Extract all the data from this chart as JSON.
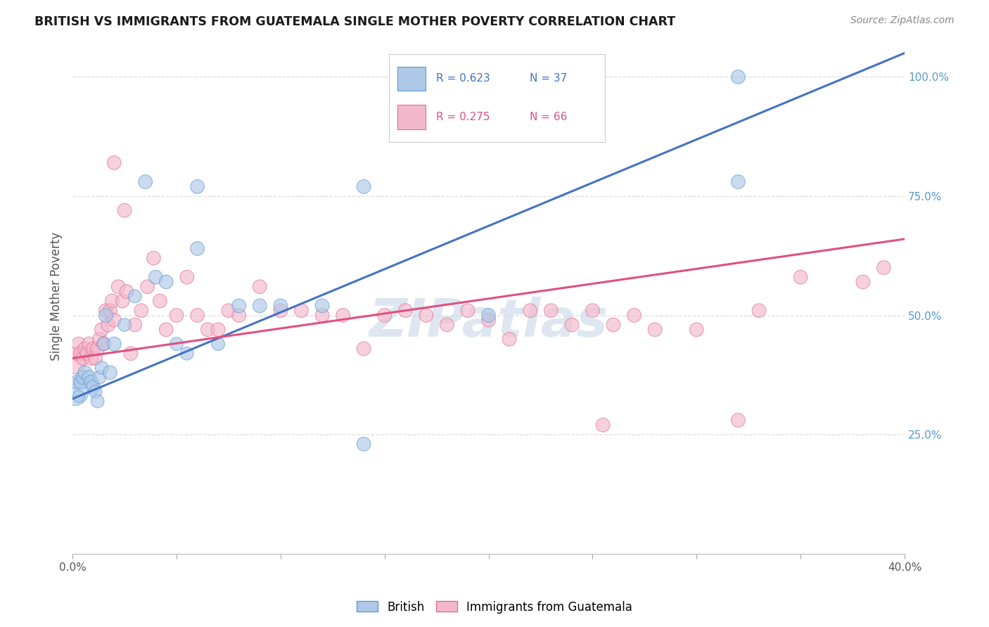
{
  "title": "BRITISH VS IMMIGRANTS FROM GUATEMALA SINGLE MOTHER POVERTY CORRELATION CHART",
  "source": "Source: ZipAtlas.com",
  "ylabel": "Single Mother Poverty",
  "legend_label1": "British",
  "legend_label2": "Immigrants from Guatemala",
  "R_british": 0.623,
  "N_british": 37,
  "R_guatemala": 0.275,
  "N_guatemala": 66,
  "blue_fill": "#aec8e8",
  "blue_edge": "#5b9bd5",
  "pink_fill": "#f4b8cc",
  "pink_edge": "#e07090",
  "blue_line_color": "#4472c4",
  "pink_line_color": "#e05080",
  "british_x": [
    0.001,
    0.002,
    0.003,
    0.004,
    0.005,
    0.006,
    0.008,
    0.009,
    0.01,
    0.011,
    0.012,
    0.013,
    0.014,
    0.015,
    0.016,
    0.018,
    0.02,
    0.025,
    0.03,
    0.035,
    0.04,
    0.045,
    0.05,
    0.055,
    0.06,
    0.07,
    0.08,
    0.09,
    0.1,
    0.12,
    0.14,
    0.2,
    0.25,
    0.32,
    0.06,
    0.14,
    0.32
  ],
  "british_y": [
    0.34,
    0.36,
    0.33,
    0.36,
    0.37,
    0.38,
    0.37,
    0.36,
    0.35,
    0.34,
    0.32,
    0.37,
    0.39,
    0.44,
    0.5,
    0.38,
    0.44,
    0.48,
    0.54,
    0.78,
    0.58,
    0.57,
    0.44,
    0.42,
    0.77,
    0.44,
    0.52,
    0.52,
    0.52,
    0.52,
    0.23,
    0.5,
    1.0,
    0.78,
    0.64,
    0.77,
    1.0
  ],
  "british_sizes": [
    800,
    200,
    150,
    200,
    200,
    200,
    200,
    200,
    200,
    180,
    180,
    180,
    180,
    180,
    200,
    200,
    200,
    180,
    180,
    200,
    200,
    200,
    180,
    180,
    200,
    180,
    200,
    200,
    200,
    200,
    200,
    200,
    200,
    200,
    200,
    200,
    200
  ],
  "guatemala_x": [
    0.001,
    0.002,
    0.003,
    0.004,
    0.005,
    0.006,
    0.007,
    0.008,
    0.009,
    0.01,
    0.011,
    0.012,
    0.013,
    0.014,
    0.015,
    0.016,
    0.017,
    0.018,
    0.019,
    0.02,
    0.022,
    0.024,
    0.026,
    0.028,
    0.03,
    0.033,
    0.036,
    0.039,
    0.042,
    0.045,
    0.05,
    0.055,
    0.06,
    0.065,
    0.07,
    0.075,
    0.08,
    0.09,
    0.1,
    0.11,
    0.12,
    0.13,
    0.14,
    0.15,
    0.16,
    0.17,
    0.18,
    0.19,
    0.2,
    0.21,
    0.22,
    0.23,
    0.24,
    0.25,
    0.255,
    0.26,
    0.27,
    0.28,
    0.3,
    0.32,
    0.33,
    0.35,
    0.38,
    0.39,
    0.02,
    0.025
  ],
  "guatemala_y": [
    0.4,
    0.42,
    0.44,
    0.42,
    0.41,
    0.43,
    0.42,
    0.44,
    0.41,
    0.43,
    0.41,
    0.43,
    0.45,
    0.47,
    0.44,
    0.51,
    0.48,
    0.51,
    0.53,
    0.49,
    0.56,
    0.53,
    0.55,
    0.42,
    0.48,
    0.51,
    0.56,
    0.62,
    0.53,
    0.47,
    0.5,
    0.58,
    0.5,
    0.47,
    0.47,
    0.51,
    0.5,
    0.56,
    0.51,
    0.51,
    0.5,
    0.5,
    0.43,
    0.5,
    0.51,
    0.5,
    0.48,
    0.51,
    0.49,
    0.45,
    0.51,
    0.51,
    0.48,
    0.51,
    0.27,
    0.48,
    0.5,
    0.47,
    0.47,
    0.28,
    0.51,
    0.58,
    0.57,
    0.6,
    0.82,
    0.72
  ],
  "guatemala_sizes": [
    500,
    200,
    200,
    200,
    200,
    200,
    200,
    200,
    200,
    200,
    200,
    200,
    200,
    200,
    200,
    200,
    200,
    200,
    200,
    200,
    200,
    200,
    200,
    200,
    200,
    200,
    200,
    200,
    200,
    200,
    200,
    200,
    200,
    200,
    200,
    200,
    200,
    200,
    200,
    200,
    200,
    200,
    200,
    200,
    200,
    200,
    200,
    200,
    200,
    200,
    200,
    200,
    200,
    200,
    200,
    200,
    200,
    200,
    200,
    200,
    200,
    200,
    200,
    200,
    200,
    200
  ],
  "xlim": [
    0.0,
    0.4
  ],
  "ylim": [
    0.0,
    1.08
  ],
  "british_line_x0": 0.0,
  "british_line_y0": 0.325,
  "british_line_x1": 0.4,
  "british_line_y1": 1.05,
  "guatemala_line_x0": 0.0,
  "guatemala_line_y0": 0.41,
  "guatemala_line_x1": 0.4,
  "guatemala_line_y1": 0.66,
  "background_color": "#ffffff",
  "grid_color": "#dddddd",
  "watermark_text": "ZIPatlas",
  "watermark_color": "#c8d8e8",
  "watermark_alpha": 0.6
}
